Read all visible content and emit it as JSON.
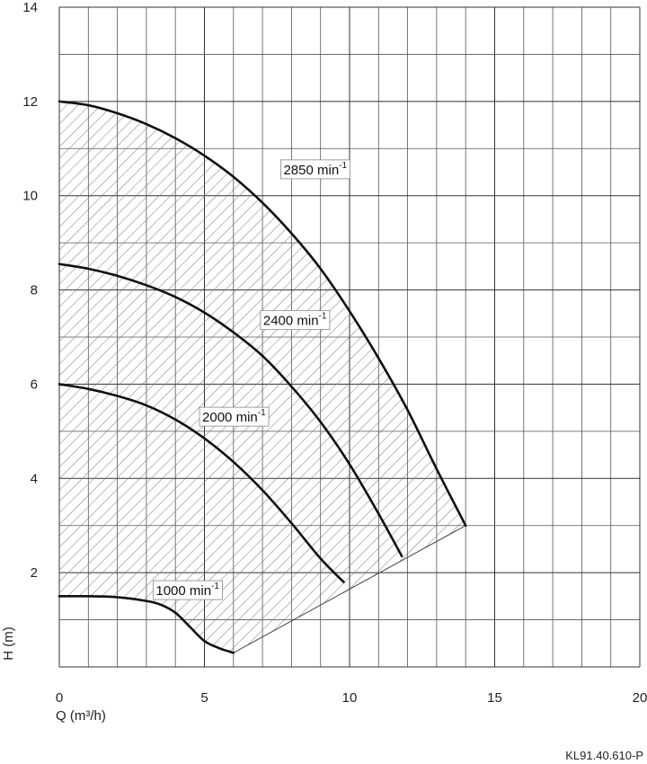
{
  "chart_data": {
    "type": "line",
    "xlabel": "Q (m³/h)",
    "ylabel": "H (m)",
    "xlim": [
      0,
      20
    ],
    "ylim": [
      0,
      14
    ],
    "x_ticks": [
      "0",
      "5",
      "10",
      "15",
      "20"
    ],
    "y_ticks": [
      "2",
      "4",
      "6",
      "8",
      "10",
      "12",
      "14"
    ],
    "grid": true,
    "series": [
      {
        "name": "2850 min-1",
        "label_main": "2850 min",
        "label_sup": "-1",
        "points": [
          [
            0,
            12.0
          ],
          [
            1,
            11.92
          ],
          [
            2,
            11.75
          ],
          [
            3,
            11.52
          ],
          [
            4,
            11.22
          ],
          [
            5,
            10.85
          ],
          [
            6,
            10.4
          ],
          [
            7,
            9.85
          ],
          [
            8,
            9.2
          ],
          [
            9,
            8.45
          ],
          [
            10,
            7.55
          ],
          [
            11,
            6.55
          ],
          [
            12,
            5.45
          ],
          [
            13,
            4.2
          ],
          [
            14,
            3.0
          ]
        ]
      },
      {
        "name": "2400 min-1",
        "label_main": "2400 min",
        "label_sup": "-1",
        "points": [
          [
            0,
            8.55
          ],
          [
            1,
            8.45
          ],
          [
            2,
            8.3
          ],
          [
            3,
            8.1
          ],
          [
            4,
            7.85
          ],
          [
            5,
            7.52
          ],
          [
            6,
            7.1
          ],
          [
            7,
            6.6
          ],
          [
            8,
            5.95
          ],
          [
            9,
            5.2
          ],
          [
            10,
            4.3
          ],
          [
            11,
            3.25
          ],
          [
            11.8,
            2.35
          ]
        ]
      },
      {
        "name": "2000 min-1",
        "label_main": "2000 min",
        "label_sup": "-1",
        "points": [
          [
            0,
            6.0
          ],
          [
            1,
            5.9
          ],
          [
            2,
            5.75
          ],
          [
            3,
            5.55
          ],
          [
            4,
            5.25
          ],
          [
            5,
            4.85
          ],
          [
            6,
            4.35
          ],
          [
            7,
            3.75
          ],
          [
            8,
            3.05
          ],
          [
            9,
            2.3
          ],
          [
            9.8,
            1.8
          ]
        ]
      },
      {
        "name": "1000 min-1",
        "label_main": "1000 min",
        "label_sup": "-1",
        "points": [
          [
            0,
            1.5
          ],
          [
            1,
            1.5
          ],
          [
            2,
            1.48
          ],
          [
            3,
            1.4
          ],
          [
            3.5,
            1.32
          ],
          [
            4,
            1.15
          ],
          [
            4.5,
            0.85
          ],
          [
            5,
            0.55
          ],
          [
            5.5,
            0.4
          ],
          [
            6,
            0.3
          ]
        ]
      }
    ],
    "operating_range": "hatched region bounded by 2850 min-1 curve above and 1000 min-1 curve below",
    "code": "KL91.40.610-P"
  }
}
